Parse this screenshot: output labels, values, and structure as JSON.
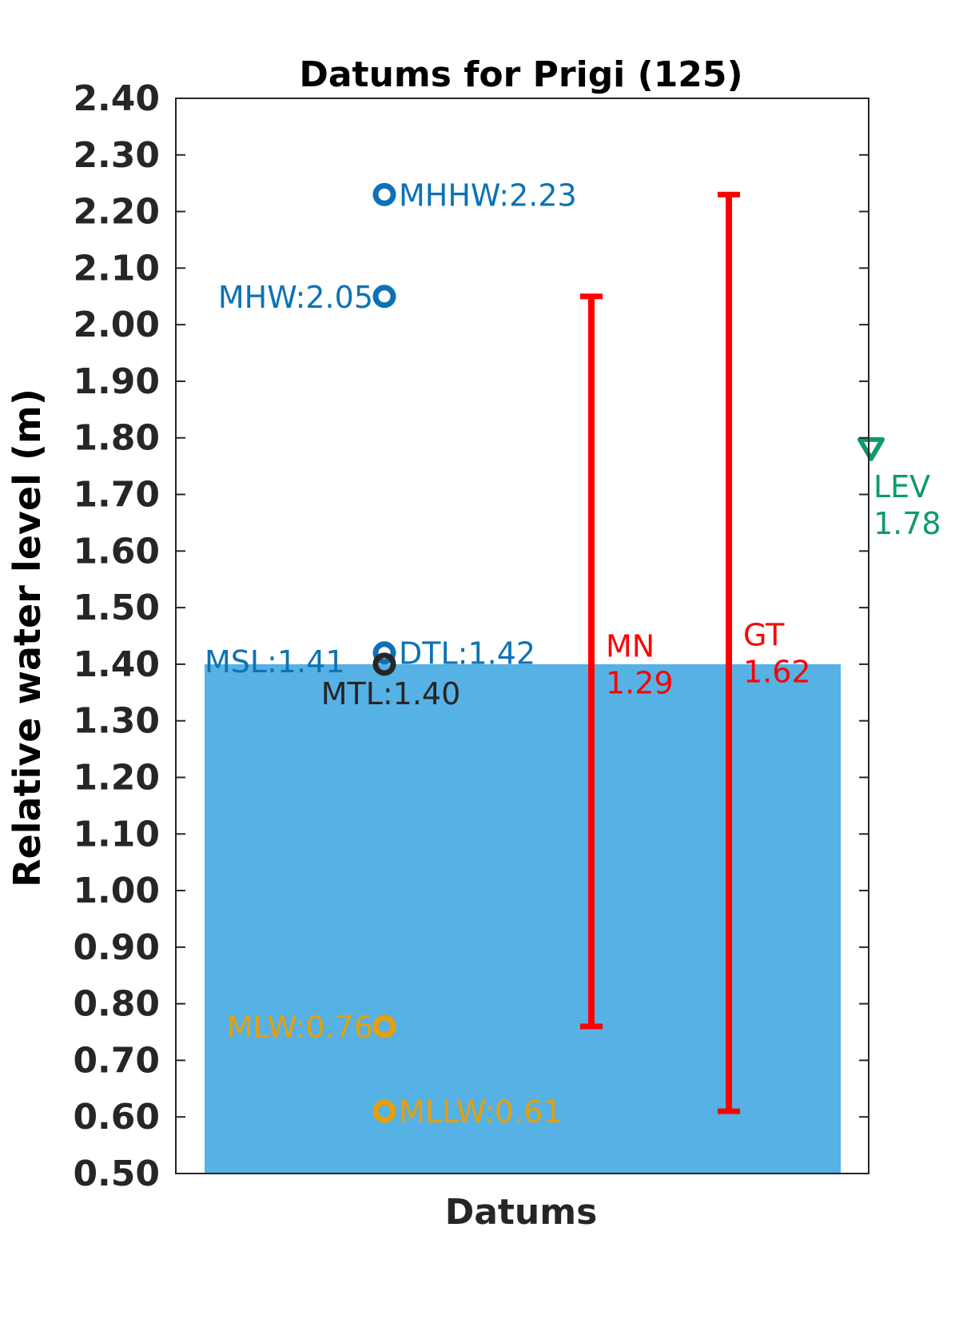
{
  "chart_data": {
    "type": "bar",
    "title": "Datums for Prigi (125)",
    "xlabel": "Datums",
    "ylabel": "Relative water level (m)",
    "ylim": [
      0.5,
      2.4
    ],
    "yticks": [
      "0.50",
      "0.60",
      "0.70",
      "0.80",
      "0.90",
      "1.00",
      "1.10",
      "1.20",
      "1.30",
      "1.40",
      "1.50",
      "1.60",
      "1.70",
      "1.80",
      "1.90",
      "2.00",
      "2.10",
      "2.20",
      "2.30",
      "2.40"
    ],
    "grid": false,
    "bar": {
      "value": 1.4,
      "color": "#56b1e5"
    },
    "datums": [
      {
        "id": "mhhw",
        "label": "MHHW:2.23",
        "value": 2.23,
        "color": "#0d72b5",
        "side": "right"
      },
      {
        "id": "mhw",
        "label": "MHW:2.05",
        "value": 2.05,
        "color": "#0d72b5",
        "side": "left"
      },
      {
        "id": "dtl",
        "label": "DTL:1.42",
        "value": 1.42,
        "color": "#0d72b5",
        "side": "right"
      },
      {
        "id": "msl",
        "label": "MSL:1.41",
        "value": 1.41,
        "color": "#0d72b5",
        "side": "left"
      },
      {
        "id": "mtl",
        "label": "MTL:1.40",
        "value": 1.4,
        "color": "#262626",
        "side": "below"
      },
      {
        "id": "mlw",
        "label": "MLW:0.76",
        "value": 0.76,
        "color": "#e6a00a",
        "side": "left"
      },
      {
        "id": "mllw",
        "label": "MLLW:0.61",
        "value": 0.61,
        "color": "#e6a00a",
        "side": "right"
      }
    ],
    "ranges": [
      {
        "id": "mn",
        "name": "MN",
        "value_text": "1.29",
        "low": 0.76,
        "high": 2.05,
        "color": "#ff0000"
      },
      {
        "id": "gt",
        "name": "GT",
        "value_text": "1.62",
        "low": 0.61,
        "high": 2.23,
        "color": "#ff0000"
      }
    ],
    "level": {
      "name": "LEV",
      "value_text": "1.78",
      "value": 1.78,
      "color": "#0f9a6e"
    }
  }
}
